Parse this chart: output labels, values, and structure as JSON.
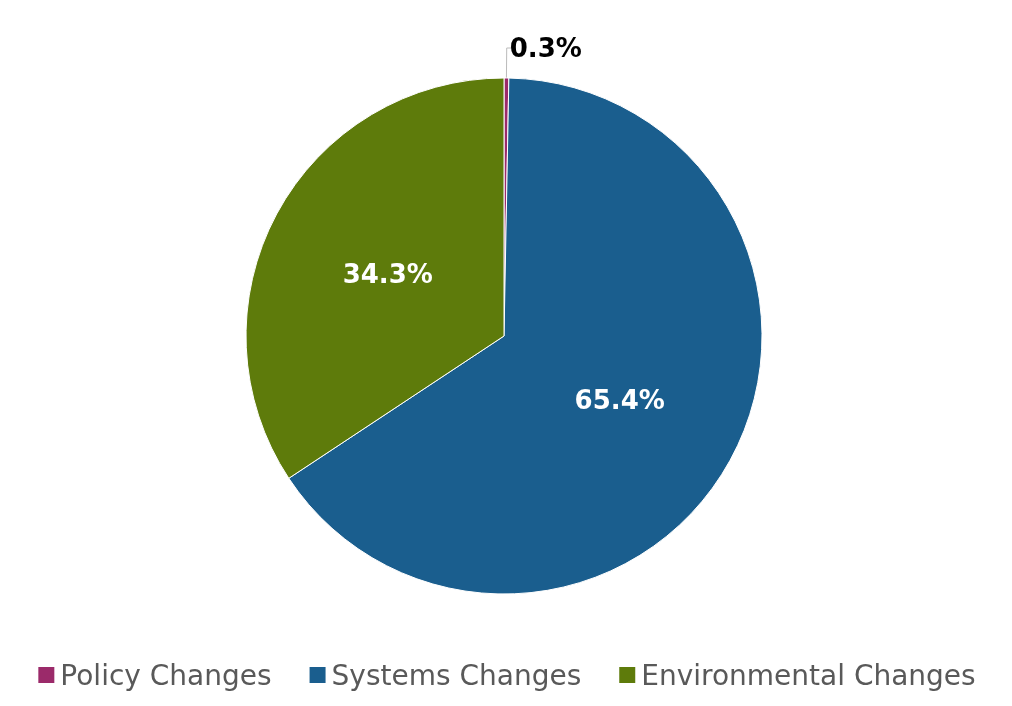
{
  "chart_data": {
    "type": "pie",
    "categories": [
      "Policy Changes",
      "Systems Changes",
      "Environmental Changes"
    ],
    "values": [
      0.3,
      65.4,
      34.3
    ],
    "colors": [
      "#9b2a6a",
      "#1a5e8e",
      "#5e7b0b"
    ],
    "value_labels": [
      "0.3%",
      "65.4%",
      "34.3%"
    ],
    "legend": "bottom"
  }
}
